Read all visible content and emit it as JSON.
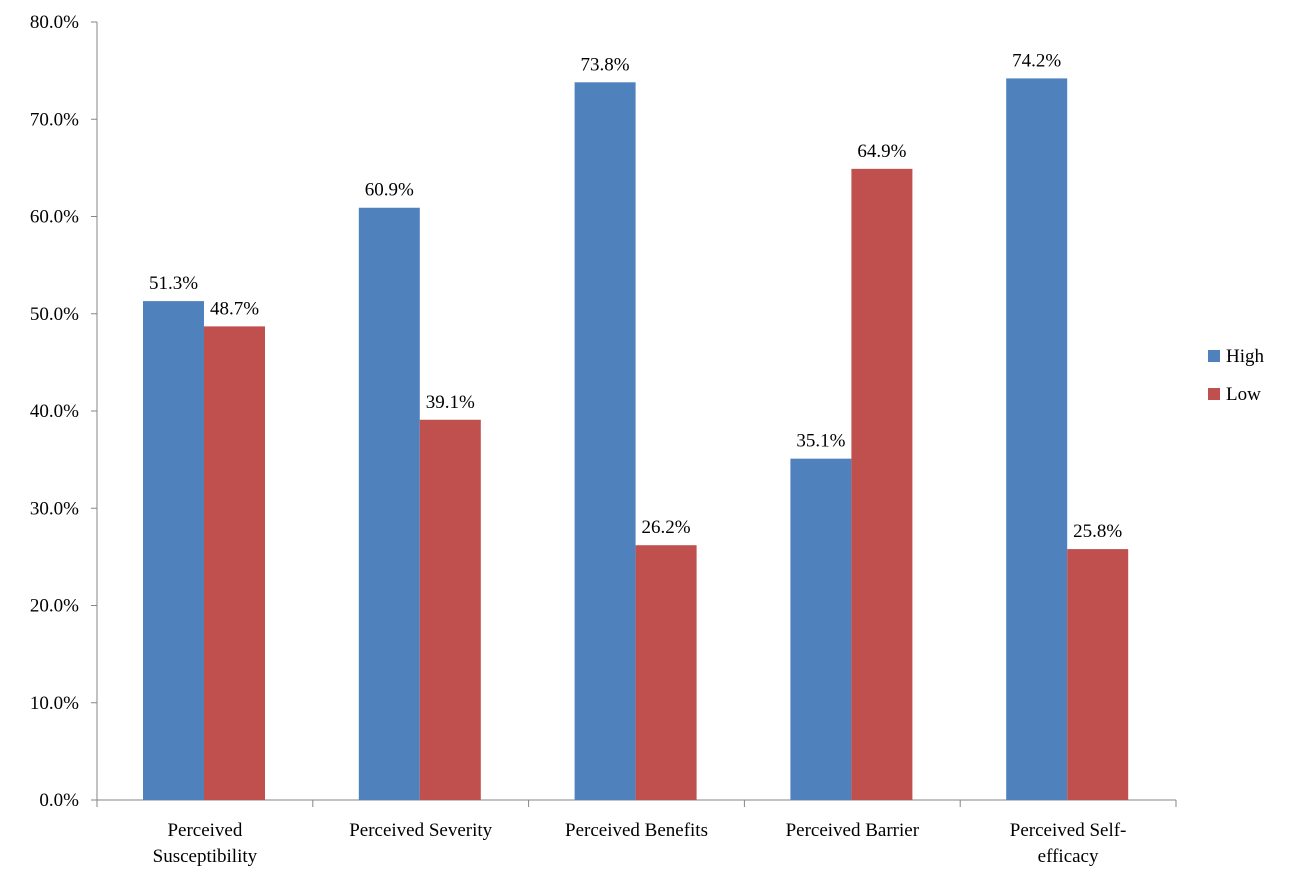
{
  "chart_data": {
    "type": "bar",
    "title": "",
    "xlabel": "",
    "ylabel": "",
    "categories": [
      [
        "Perceived",
        "Susceptibility"
      ],
      [
        "Perceived Severity"
      ],
      [
        "Perceived Benefits"
      ],
      [
        "Perceived Barrier"
      ],
      [
        "Perceived Self-",
        "efficacy"
      ]
    ],
    "series": [
      {
        "name": "High",
        "color": "#4F81BD",
        "values": [
          51.3,
          60.9,
          73.8,
          35.1,
          74.2
        ],
        "labels": [
          "51.3%",
          "60.9%",
          "73.8%",
          "35.1%",
          "74.2%"
        ]
      },
      {
        "name": "Low",
        "color": "#C0504D",
        "values": [
          48.7,
          39.1,
          26.2,
          64.9,
          25.8
        ],
        "labels": [
          "48.7%",
          "39.1%",
          "26.2%",
          "64.9%",
          "25.8%"
        ]
      }
    ],
    "ylim": [
      0,
      80
    ],
    "yticks": [
      {
        "value": 0,
        "label": "0.0%"
      },
      {
        "value": 10,
        "label": "10.0%"
      },
      {
        "value": 20,
        "label": "20.0%"
      },
      {
        "value": 30,
        "label": "30.0%"
      },
      {
        "value": 40,
        "label": "40.0%"
      },
      {
        "value": 50,
        "label": "50.0%"
      },
      {
        "value": 60,
        "label": "60.0%"
      },
      {
        "value": 70,
        "label": "70.0%"
      },
      {
        "value": 80,
        "label": "80.0%"
      }
    ],
    "grid": false,
    "legend_position": "right"
  }
}
